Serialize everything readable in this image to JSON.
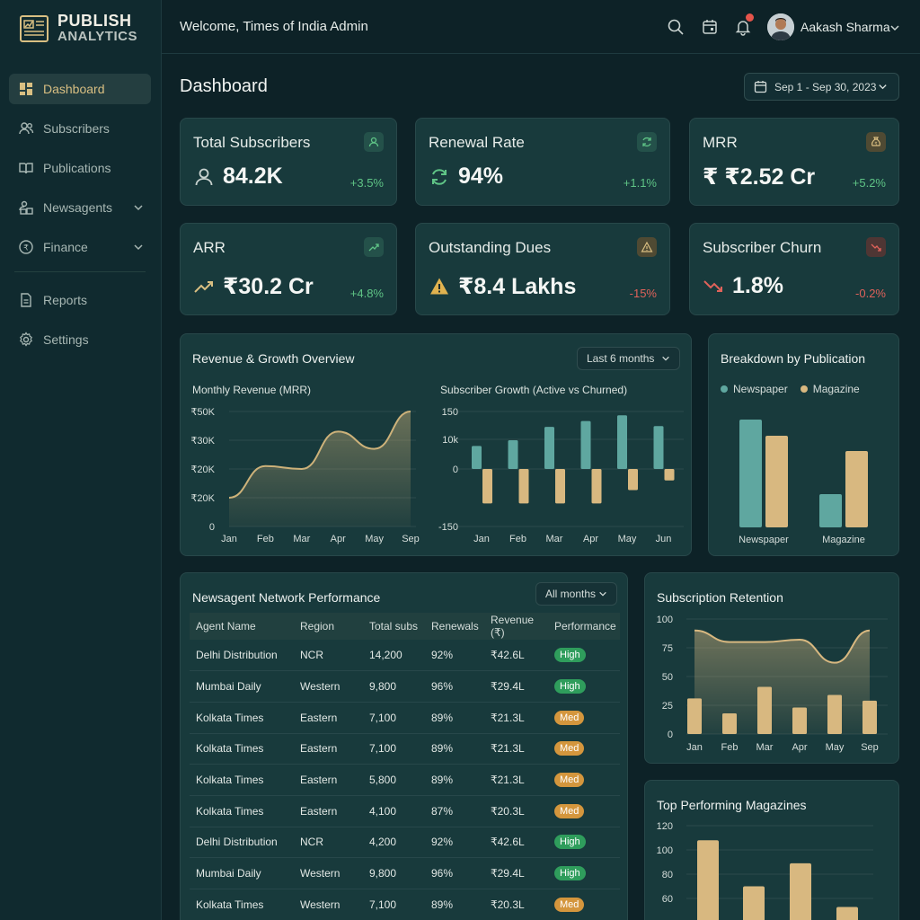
{
  "app": {
    "logo_line1": "PUBLISH",
    "logo_line2": "ANALYTICS"
  },
  "sidebar": {
    "items": [
      {
        "label": "Dashboard",
        "icon": "grid-icon",
        "active": true
      },
      {
        "label": "Subscribers",
        "icon": "users-icon"
      },
      {
        "label": "Publications",
        "icon": "book-icon"
      },
      {
        "label": "Newsagents",
        "icon": "store-icon",
        "has_submenu": true
      },
      {
        "label": "Finance",
        "icon": "rupee-icon",
        "has_submenu": true
      },
      {
        "label": "Reports",
        "icon": "document-icon"
      },
      {
        "label": "Settings",
        "icon": "gear-icon"
      }
    ]
  },
  "header": {
    "welcome_prefix": "Welcome, ",
    "welcome_name": "Times of India Admin",
    "user_name": "Aakash Sharma",
    "has_notification": true
  },
  "page": {
    "title": "Dashboard",
    "date_range": "Sep 1 - Sep 30, 2023"
  },
  "kpis": [
    {
      "title": "Total Subscribers",
      "value": "84.2K",
      "change": "+3.5%",
      "trend": "up",
      "icon": "user-icon"
    },
    {
      "title": "Renewal Rate",
      "value": "94%",
      "change": "+1.1%",
      "trend": "up",
      "icon": "refresh-icon"
    },
    {
      "title": "MRR",
      "value": "₹ ₹2.52 Cr",
      "change": "+5.2%",
      "trend": "up",
      "icon": "money-bag-icon"
    },
    {
      "title": "ARR",
      "value": "₹30.2 Cr",
      "change": "+4.8%",
      "trend": "up",
      "icon": "trend-up-icon"
    },
    {
      "title": "Outstanding Dues",
      "value": "₹8.4 Lakhs",
      "change": "-15%",
      "trend": "down",
      "icon": "warning-icon"
    },
    {
      "title": "Subscriber Churn",
      "value": "1.8%",
      "change": "-0.2%",
      "trend": "down",
      "icon": "trend-down-icon"
    }
  ],
  "revenue_panel": {
    "title": "Revenue & Growth Overview",
    "filter": "Last 6 months"
  },
  "breakdown_panel": {
    "title": "Breakdown by Publication",
    "legend": [
      "Newspaper",
      "Magazine"
    ]
  },
  "newsagent_panel": {
    "title": "Newsagent Network Performance",
    "filter": "All months",
    "columns": [
      "Agent Name",
      "Region",
      "Total subs",
      "Renewals",
      "Revenue (₹)",
      "Performance"
    ],
    "rows": [
      [
        "Delhi Distribution",
        "NCR",
        "14,200",
        "92%",
        "₹42.6L",
        "High"
      ],
      [
        "Mumbai Daily",
        "Western",
        "9,800",
        "96%",
        "₹29.4L",
        "High"
      ],
      [
        "Kolkata Times",
        "Eastern",
        "7,100",
        "89%",
        "₹21.3L",
        "Med"
      ],
      [
        "Kolkata Times",
        "Eastern",
        "7,100",
        "89%",
        "₹21.3L",
        "Med"
      ],
      [
        "Kolkata Times",
        "Eastern",
        "5,800",
        "89%",
        "₹21.3L",
        "Med"
      ],
      [
        "Kolkata Times",
        "Eastern",
        "4,100",
        "87%",
        "₹20.3L",
        "Med"
      ],
      [
        "Delhi Distribution",
        "NCR",
        "4,200",
        "92%",
        "₹42.6L",
        "High"
      ],
      [
        "Mumbai Daily",
        "Western",
        "9,800",
        "96%",
        "₹29.4L",
        "High"
      ],
      [
        "Kolkata Times",
        "Western",
        "7,100",
        "89%",
        "₹20.3L",
        "Med"
      ]
    ]
  },
  "retention_panel": {
    "title": "Subscription Retention"
  },
  "top_magazines_panel": {
    "title": "Top Performing Magazines"
  },
  "chart_data": [
    {
      "type": "area",
      "title": "Monthly Revenue (MRR)",
      "categories": [
        "Jan",
        "Feb",
        "Mar",
        "Apr",
        "May",
        "Sep"
      ],
      "y_tick_labels": [
        "0",
        "₹20K",
        "₹20K",
        "₹30K",
        "₹50K"
      ],
      "values": [
        1,
        2.1,
        2.0,
        3.3,
        2.7,
        4.0
      ],
      "ylim": [
        0,
        4
      ],
      "color": "#cdb27a"
    },
    {
      "type": "bar",
      "title": "Subscriber Growth (Active vs Churned)",
      "categories": [
        "Jan",
        "Feb",
        "Mar",
        "Apr",
        "May",
        "Jun"
      ],
      "y_tick_labels": [
        "-150",
        "0",
        "10k",
        "150"
      ],
      "series": [
        {
          "name": "Active",
          "values": [
            60,
            75,
            110,
            125,
            140,
            112
          ],
          "color": "#5fa7a0"
        },
        {
          "name": "Churned",
          "values": [
            -90,
            -90,
            -90,
            -90,
            -55,
            -30
          ],
          "color": "#d8b880"
        }
      ],
      "ylim": [
        -150,
        150
      ]
    },
    {
      "type": "bar",
      "title": "Breakdown by Publication",
      "categories": [
        "Newspaper",
        "Magazine"
      ],
      "series": [
        {
          "name": "Newspaper",
          "values": [
            120,
            37
          ],
          "color": "#5fa7a0"
        },
        {
          "name": "Magazine",
          "values": [
            102,
            85
          ],
          "color": "#d8b880"
        }
      ],
      "ylim": [
        0,
        140
      ]
    },
    {
      "type": "bar",
      "title": "Subscription Retention",
      "categories": [
        "Jan",
        "Feb",
        "Mar",
        "Apr",
        "May",
        "Sep"
      ],
      "values": [
        31,
        18,
        41,
        23,
        34,
        29
      ],
      "area_values": [
        90,
        80,
        80,
        82,
        62,
        90
      ],
      "ylim": [
        0,
        100
      ],
      "y_ticks": [
        0,
        25,
        50,
        75,
        100
      ],
      "color": "#d8b880"
    },
    {
      "type": "bar",
      "title": "Top Performing Magazines",
      "values": [
        108,
        70,
        89,
        53
      ],
      "ylim": [
        40,
        120
      ],
      "y_ticks": [
        60,
        80,
        100,
        120
      ],
      "color": "#d8b880"
    }
  ],
  "colors": {
    "accent_gold": "#d9bf82",
    "positive": "#5fc486",
    "negative": "#e0625a",
    "teal_bar": "#5fa7a0"
  }
}
